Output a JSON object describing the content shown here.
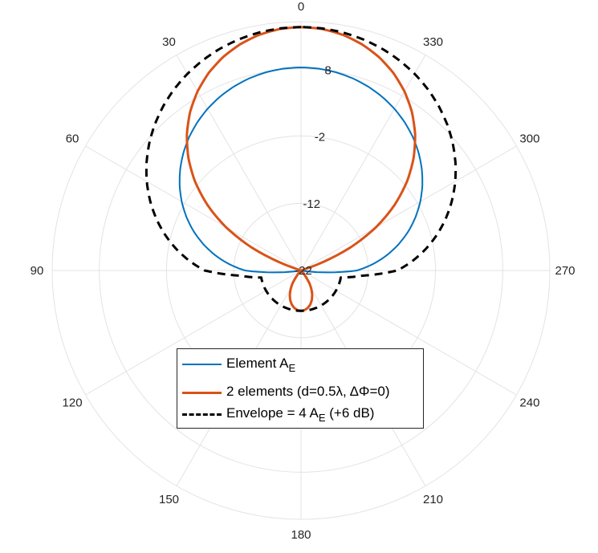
{
  "chart_data": {
    "type": "polar-line",
    "theta_zero": "top",
    "theta_direction": "counterclockwise",
    "theta_ticks": [
      0,
      30,
      60,
      90,
      120,
      150,
      180,
      210,
      240,
      270,
      300,
      330
    ],
    "theta_tick_labels": [
      "0",
      "30",
      "60",
      "90",
      "120",
      "150",
      "180",
      "210",
      "240",
      "270",
      "300",
      "330"
    ],
    "r_ticks": [
      -22,
      -12,
      -2,
      8
    ],
    "r_tick_labels": [
      "-22",
      "-12",
      "-2",
      "8"
    ],
    "rlim": [
      -22,
      15
    ],
    "grid": true,
    "legend_placement": "bottom-center",
    "theta_deg_step": 5,
    "theta_deg_range": [
      0,
      360
    ],
    "series": [
      {
        "name": "Element A_E",
        "color": "#0072BD",
        "style": "solid",
        "values": [
          8.2,
          8.13,
          7.93,
          7.59,
          7.12,
          6.51,
          5.77,
          4.89,
          3.88,
          2.73,
          1.45,
          0.03,
          -1.52,
          -3.21,
          -5.03,
          -6.99,
          -9.08,
          -11.31,
          -13.67,
          -19,
          -22,
          -22,
          -22,
          -22,
          -22,
          -22,
          -22,
          -22,
          -22,
          -22,
          -22,
          -22,
          -22,
          -22,
          -22,
          -22,
          -22,
          -22,
          -22,
          -22,
          -22,
          -22,
          -22,
          -22,
          -22,
          -22,
          -22,
          -22,
          -22,
          -22,
          -22,
          -22,
          -22,
          -19,
          -13.67,
          -11.31,
          -9.08,
          -6.99,
          -5.03,
          -3.21,
          -1.52,
          0.03,
          1.45,
          2.73,
          3.88,
          4.89,
          5.77,
          6.51,
          7.12,
          7.59,
          7.93,
          8.13,
          8.2
        ]
      },
      {
        "name": "2 elements (d=0.5λ, ΔΦ=0)",
        "color": "#D95319",
        "style": "solid",
        "values": [
          14.2,
          14.05,
          13.6,
          12.85,
          11.8,
          10.44,
          8.76,
          6.75,
          4.4,
          1.68,
          -1.44,
          -5.02,
          -9.08,
          -13.89,
          -19.51,
          -26.4,
          -35.5,
          -49.9,
          -60,
          -57.6,
          -48.4,
          -41.4,
          -36.5,
          -32.7,
          -29.6,
          -27.05,
          -24.9,
          -23.05,
          -21.48,
          -20.14,
          -19.01,
          -18.07,
          -17.32,
          -16.74,
          -16.33,
          -16.08,
          -16,
          -16.08,
          -16.33,
          -16.74,
          -17.32,
          -18.07,
          -19.01,
          -20.14,
          -21.48,
          -23.05,
          -24.9,
          -27.05,
          -29.6,
          -32.7,
          -36.5,
          -41.4,
          -48.4,
          -57.6,
          -60,
          -49.9,
          -35.5,
          -26.4,
          -19.51,
          -13.89,
          -9.08,
          -5.02,
          -1.44,
          1.68,
          4.4,
          6.75,
          8.76,
          10.44,
          11.8,
          12.85,
          13.6,
          14.05,
          14.2
        ]
      },
      {
        "name": "Envelope = 4 A_E (+6 dB)",
        "color": "#000000",
        "style": "dashed",
        "values": [
          14.2,
          14.13,
          13.93,
          13.59,
          13.12,
          12.51,
          11.77,
          10.89,
          9.88,
          8.73,
          7.45,
          6.03,
          4.48,
          2.79,
          0.97,
          -0.99,
          -3.08,
          -5.31,
          -7.67,
          -13,
          -16,
          -16,
          -16,
          -16,
          -16,
          -16,
          -16,
          -16,
          -16,
          -16,
          -16,
          -16,
          -16,
          -16,
          -16,
          -16,
          -16,
          -16,
          -16,
          -16,
          -16,
          -16,
          -16,
          -16,
          -16,
          -16,
          -16,
          -16,
          -16,
          -16,
          -16,
          -16,
          -16,
          -13,
          -7.67,
          -5.31,
          -3.08,
          -0.99,
          0.97,
          2.79,
          4.48,
          6.03,
          7.45,
          8.73,
          9.88,
          10.89,
          11.77,
          12.51,
          13.12,
          13.59,
          13.93,
          14.13,
          14.2
        ]
      }
    ]
  },
  "legend": {
    "items": [
      {
        "text": "Element A",
        "sub": "E",
        "after": ""
      },
      {
        "text": "2 elements (d=0.5λ, ΔΦ=0)",
        "sub": "",
        "after": ""
      },
      {
        "text": "Envelope = 4 A",
        "sub": "E",
        "after": " (+6 dB)"
      }
    ]
  }
}
